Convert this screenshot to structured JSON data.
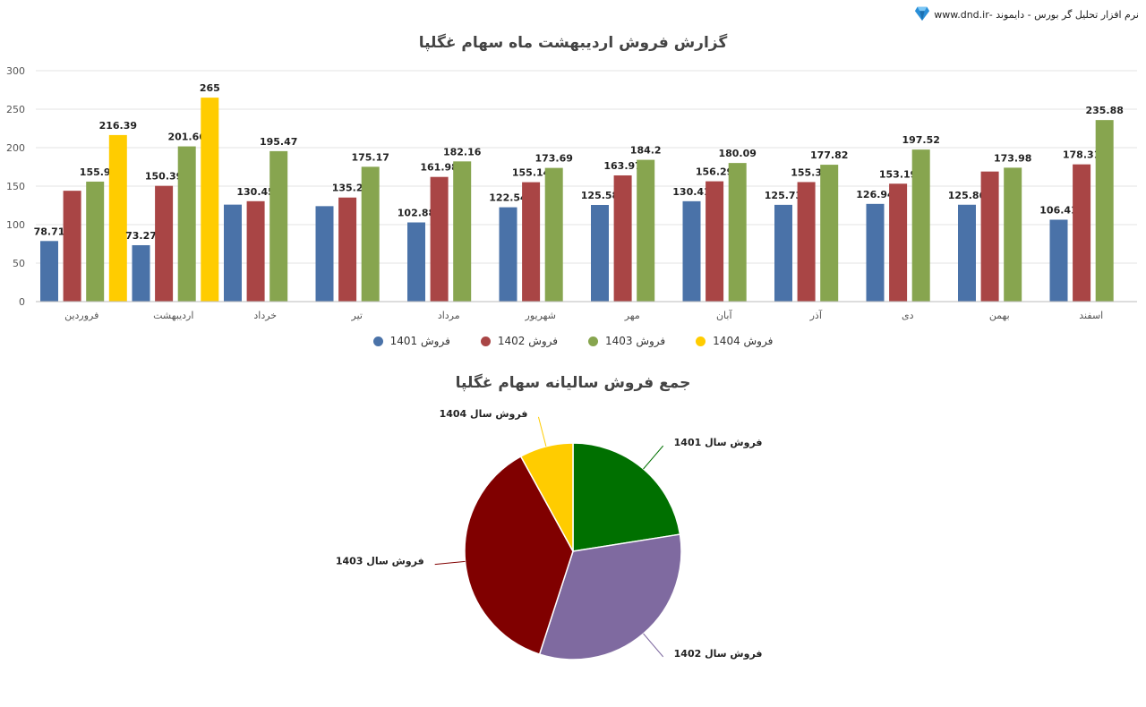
{
  "brand": {
    "text": "نرم افزار تحلیل گر بورس - دایموند -www.dnd.ir",
    "icon": "diamond-icon"
  },
  "chart_data": [
    {
      "type": "bar",
      "title": "گزارش فروش اردیبهشت ماه سهام غگلپا",
      "xlabel": "",
      "ylabel": "",
      "ylim": [
        0,
        300
      ],
      "yticks": [
        0,
        50,
        100,
        150,
        200,
        250,
        300
      ],
      "grid": true,
      "legend_position": "bottom",
      "categories": [
        "فروردین",
        "اردیبهشت",
        "خرداد",
        "تیر",
        "مرداد",
        "شهریور",
        "مهر",
        "آبان",
        "آذر",
        "دی",
        "بهمن",
        "اسفند"
      ],
      "series": [
        {
          "name": "فروش 1401",
          "color": "#4a72a8",
          "values": [
            78.71,
            73.27,
            126,
            124,
            102.88,
            122.54,
            125.58,
            130.41,
            125.73,
            126.94,
            125.86,
            106.41
          ],
          "labels": [
            "78.71",
            "73.27",
            "",
            "",
            "102.88",
            "122.54",
            "125.58",
            "130.41",
            "125.73",
            "126.94",
            "125.86",
            "106.41"
          ]
        },
        {
          "name": "فروش 1402",
          "color": "#a94545",
          "values": [
            144,
            150.39,
            130.45,
            135.2,
            161.98,
            155.14,
            163.97,
            156.29,
            155.3,
            153.19,
            169,
            178.31
          ],
          "labels": [
            "",
            "150.39",
            "130.45",
            "135.2",
            "161.98",
            "155.14",
            "163.97",
            "156.29",
            "155.3",
            "153.19",
            "",
            "178.31"
          ]
        },
        {
          "name": "فروش 1403",
          "color": "#87a54f",
          "values": [
            155.9,
            201.66,
            195.47,
            175.17,
            182.16,
            173.69,
            184.2,
            180.09,
            177.82,
            197.52,
            173.98,
            235.88
          ],
          "labels": [
            "155.9",
            "201.66",
            "195.47",
            "175.17",
            "182.16",
            "173.69",
            "184.2",
            "180.09",
            "177.82",
            "197.52",
            "173.98",
            "235.88"
          ]
        },
        {
          "name": "فروش 1404",
          "color": "#ffcc00",
          "values": [
            216.39,
            265,
            null,
            null,
            null,
            null,
            null,
            null,
            null,
            null,
            null,
            null
          ],
          "labels": [
            "216.39",
            "265",
            "",
            "",
            "",
            "",
            "",
            "",
            "",
            "",
            "",
            ""
          ]
        }
      ]
    },
    {
      "type": "pie",
      "title": "جمع فروش سالیانه سهام غگلپا",
      "slices": [
        {
          "label": "فروش سال 1401",
          "value": 22.5,
          "color": "#007000"
        },
        {
          "label": "فروش سال 1402",
          "value": 32.5,
          "color": "#7f6aa0"
        },
        {
          "label": "فروش سال 1403",
          "value": 37,
          "color": "#800000"
        },
        {
          "label": "فروش سال 1404",
          "value": 8,
          "color": "#ffcc00"
        }
      ]
    }
  ]
}
